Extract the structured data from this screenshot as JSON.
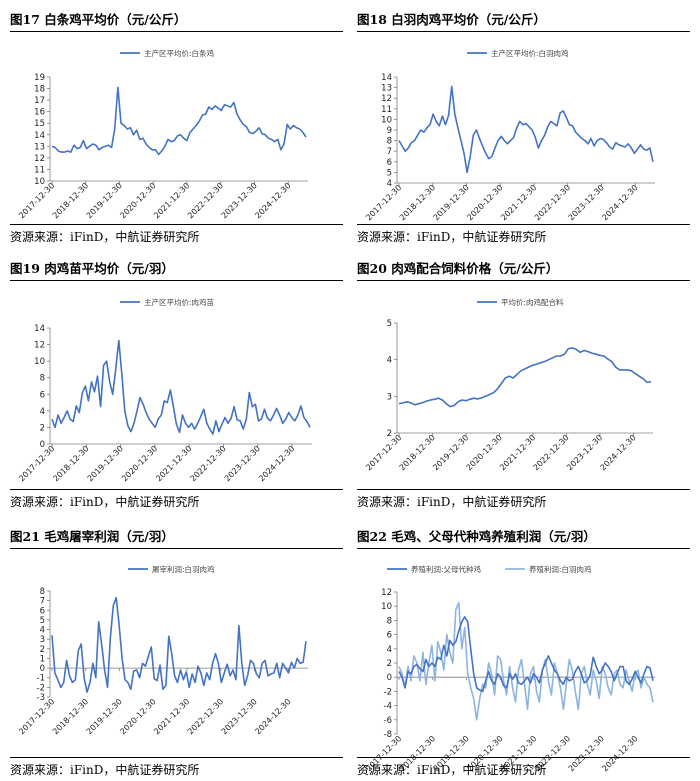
{
  "colors": {
    "line": "#4472C4",
    "line_light": "#8DB4E2",
    "axis": "#7F7F7F"
  },
  "charts": [
    {
      "chart_data": {
        "type": "line",
        "title": "图17  白条鸡平均价（元/公斤）",
        "series": [
          {
            "name": "主产区平均价:白条鸡",
            "values": [
              13,
              12.9,
              12.6,
              12.5,
              12.5,
              12.6,
              12.5,
              13.1,
              12.8,
              12.9,
              13.5,
              12.8,
              13,
              13.2,
              13.1,
              12.7,
              12.9,
              13,
              13.1,
              12.9,
              14.5,
              18.1,
              15,
              14.8,
              14.5,
              14.6,
              14,
              14.4,
              13.6,
              13.7,
              13.2,
              12.9,
              12.7,
              12.7,
              12.3,
              12.6,
              13,
              13.6,
              13.4,
              13.5,
              13.9,
              14,
              13.7,
              13.5,
              14.2,
              14.5,
              14.8,
              15.2,
              15.7,
              15.8,
              16.4,
              16.2,
              16.5,
              16.3,
              16.1,
              16.6,
              16.5,
              16.4,
              16.8,
              15.8,
              15.3,
              14.9,
              14.7,
              14.2,
              14.1,
              14.3,
              14.6,
              14.1,
              14,
              13.7,
              13.6,
              13.4,
              13.6,
              12.7,
              13.2,
              14.9,
              14.5,
              14.8,
              14.6,
              14.5,
              14.2,
              13.8
            ]
          }
        ],
        "xlabels": [
          "2017-12-30",
          "2018-12-30",
          "2019-12-30",
          "2020-12-30",
          "2021-12-30",
          "2022-12-30",
          "2023-12-30",
          "2024-12-30"
        ],
        "ylim": [
          10,
          19
        ],
        "yticks": [
          10,
          11,
          12,
          13,
          14,
          15,
          16,
          17,
          18,
          19
        ]
      },
      "source": "资源来源：iFinD，中航证券研究所"
    },
    {
      "chart_data": {
        "type": "line",
        "title": "图18  白羽肉鸡平均价（元/公斤）",
        "series": [
          {
            "name": "主产区平均价:白羽肉鸡",
            "values": [
              8,
              7.5,
              7,
              7.3,
              7.8,
              8,
              8.5,
              9,
              8.8,
              9.2,
              9.5,
              10.5,
              9.8,
              9.4,
              10.3,
              9.5,
              10.4,
              13.1,
              10.5,
              9.2,
              8,
              6.8,
              5,
              6.5,
              8.5,
              9,
              8.2,
              7.5,
              6.8,
              6.3,
              6.5,
              7.3,
              8,
              8.4,
              8,
              7.7,
              8,
              8.3,
              9.2,
              9.8,
              9.5,
              9.6,
              9.3,
              9,
              8.3,
              7.3,
              8,
              8.5,
              9.3,
              9.8,
              9.6,
              9.4,
              10.6,
              10.8,
              10.2,
              9.5,
              9.4,
              8.8,
              8.5,
              8.2,
              8,
              7.7,
              8.2,
              7.5,
              8,
              8.2,
              8.1,
              7.8,
              7.4,
              7.2,
              7.8,
              7.6,
              7.5,
              7.4,
              7.7,
              7.3,
              6.8,
              7.2,
              7.6,
              7.2,
              7.1,
              7.3,
              6
            ]
          }
        ],
        "xlabels": [
          "2017-12-30",
          "2018-12-30",
          "2019-12-30",
          "2020-12-30",
          "2021-12-30",
          "2022-12-30",
          "2023-12-30",
          "2024-12-30"
        ],
        "ylim": [
          4,
          14
        ],
        "yticks": [
          4,
          5,
          6,
          7,
          8,
          9,
          10,
          11,
          12,
          13,
          14
        ]
      },
      "source": "资源来源：iFinD，中航证券研究所"
    },
    {
      "chart_data": {
        "type": "line",
        "title": "图19  肉鸡苗平均价（元/羽）",
        "series": [
          {
            "name": "主产区平均价:肉鸡苗",
            "values": [
              3,
              2,
              3.5,
              2.5,
              3.2,
              4,
              3,
              2.7,
              4.6,
              3.8,
              6.2,
              7,
              5.2,
              7.5,
              6.3,
              8.2,
              4.5,
              9.5,
              10,
              7.5,
              6,
              9,
              12.5,
              8.5,
              4,
              2.2,
              1.5,
              2.5,
              4,
              5.6,
              4.8,
              3.8,
              3,
              2.5,
              2,
              3,
              3.5,
              5.2,
              5,
              6.5,
              4.5,
              2.4,
              1.4,
              3.5,
              2.5,
              2,
              2.5,
              1.8,
              2.5,
              3.3,
              4.2,
              2.5,
              1.8,
              1.2,
              2.8,
              1.5,
              2.4,
              3.2,
              2.5,
              3.1,
              4.5,
              2.9,
              2.8,
              1.8,
              3,
              6.2,
              4.5,
              4.8,
              2.8,
              3,
              4.2,
              3.1,
              2.8,
              3.5,
              4.3,
              3.5,
              2.5,
              3,
              3.8,
              3.2,
              2.8,
              3.5,
              4.6,
              3.2,
              2.7,
              2
            ]
          }
        ],
        "xlabels": [
          "2017-12-30",
          "2018-12-30",
          "2019-12-30",
          "2020-12-30",
          "2021-12-30",
          "2022-12-30",
          "2023-12-30",
          "2024-12-30"
        ],
        "ylim": [
          0,
          14
        ],
        "yticks": [
          0,
          2,
          4,
          6,
          8,
          10,
          12,
          14
        ]
      },
      "source": "资源来源：iFinD，中航证券研究所"
    },
    {
      "chart_data": {
        "type": "line",
        "title": "图20  肉鸡配合饲料价格（元/公斤）",
        "series": [
          {
            "name": "平均价:肉鸡配合料",
            "values": [
              2.8,
              2.82,
              2.85,
              2.82,
              2.77,
              2.8,
              2.83,
              2.87,
              2.9,
              2.92,
              2.95,
              2.9,
              2.8,
              2.72,
              2.75,
              2.85,
              2.9,
              2.88,
              2.92,
              2.95,
              2.93,
              2.96,
              3,
              3.05,
              3.1,
              3.2,
              3.35,
              3.5,
              3.55,
              3.5,
              3.6,
              3.7,
              3.75,
              3.8,
              3.85,
              3.88,
              3.92,
              3.95,
              4,
              4.05,
              4.1,
              4.1,
              4.15,
              4.3,
              4.32,
              4.28,
              4.2,
              4.25,
              4.22,
              4.18,
              4.15,
              4.12,
              4.1,
              4.02,
              3.95,
              3.8,
              3.72,
              3.72,
              3.72,
              3.7,
              3.62,
              3.55,
              3.48,
              3.38,
              3.4
            ]
          }
        ],
        "xlabels": [
          "2017-12-30",
          "2018-12-30",
          "2019-12-30",
          "2020-12-30",
          "2021-12-30",
          "2022-12-30",
          "2023-12-30",
          "2024-12-30"
        ],
        "ylim": [
          2,
          5
        ],
        "yticks": [
          2,
          3,
          4,
          5
        ]
      },
      "source": "资源来源：iFinD，中航证券研究所"
    },
    {
      "chart_data": {
        "type": "line",
        "title": "图21  毛鸡屠宰利润（元/羽）",
        "series": [
          {
            "name": "屠宰利润:白羽肉鸡",
            "values": [
              3.4,
              -0.5,
              -1.2,
              -2,
              -1.5,
              0.8,
              -0.8,
              -1.5,
              -1.2,
              1.8,
              2.5,
              -1,
              -2.5,
              -1.5,
              0.5,
              -1,
              4.8,
              2.5,
              -0.2,
              -2,
              3.2,
              6.5,
              7.3,
              4.5,
              1,
              -1.2,
              -1.5,
              -2.2,
              -0.3,
              -0.2,
              -1,
              0.5,
              0.2,
              1.2,
              2.2,
              -1.1,
              -1.3,
              0.3,
              -2.2,
              -1.8,
              3.3,
              1.5,
              -0.8,
              -1.5,
              -0.2,
              -1.2,
              -0.4,
              -2,
              -0.6,
              -1.5,
              0.2,
              -0.5,
              -1.8,
              -0.5,
              -1.2,
              0.5,
              1.5,
              0.5,
              -1.5,
              -0.5,
              0.4,
              -0.8,
              -0.2,
              -1.2,
              4.4,
              0.5,
              -1.8,
              -0.8,
              0.8,
              0.5,
              -0.6,
              -1,
              0.5,
              0.8,
              -0.8,
              -0.6,
              -0.5,
              0.5,
              -1,
              0.5,
              0,
              -0.5,
              0.6,
              0,
              1,
              0.5,
              0.6,
              2.8
            ]
          }
        ],
        "xlabels": [
          "2017-12-30",
          "2018-12-30",
          "2019-12-30",
          "2020-12-30",
          "2021-12-30",
          "2022-12-30",
          "2023-12-30",
          "2024-12-30"
        ],
        "ylim": [
          -3,
          8
        ],
        "yticks": [
          -3,
          -2,
          -1,
          0,
          1,
          2,
          3,
          4,
          5,
          6,
          7,
          8
        ]
      },
      "source": "资源来源：iFinD，中航证券研究所"
    },
    {
      "chart_data": {
        "type": "line",
        "title": "图22  毛鸡、父母代种鸡养殖利润（元/羽）",
        "series": [
          {
            "name": "养殖利润:父母代种鸡",
            "values": [
              0.8,
              0,
              -1.5,
              0.8,
              0.5,
              1.5,
              1.8,
              1.2,
              0.8,
              2.5,
              1.5,
              2,
              1.5,
              2.8,
              2.5,
              4.5,
              3,
              5.2,
              4.5,
              5,
              6.5,
              7.8,
              8.5,
              7.8,
              4,
              0.5,
              -1.5,
              -1.8,
              -2,
              -0.5,
              0.8,
              -0.5,
              -1,
              0.5,
              0,
              -1.2,
              -1.5,
              0.5,
              -0.3,
              0.5,
              -0.8,
              -1,
              -0.5,
              0,
              -0.8,
              0.5,
              0,
              -0.8,
              1,
              2,
              3,
              2,
              1,
              0.5,
              -0.5,
              -1,
              0,
              -0.5,
              -0.3,
              0.8,
              1.5,
              0.5,
              -0.8,
              -0.5,
              0.3,
              2.8,
              1.5,
              0.5,
              1,
              2,
              1.5,
              0.8,
              -0.5,
              0.5,
              1.5,
              1.5,
              -0.5,
              -1,
              -0.3,
              0.8,
              0,
              -0.8,
              0.5,
              1.5,
              1.3,
              -0.5
            ]
          },
          {
            "name": "养殖利润:白羽肉鸡",
            "values": [
              1.5,
              0.5,
              -1.5,
              1.5,
              -0.5,
              3,
              2,
              -0.5,
              3.5,
              -1,
              2,
              4.5,
              -0.5,
              5,
              3.5,
              1,
              6,
              3.5,
              2,
              9.5,
              10.5,
              4,
              7,
              0.5,
              -1.5,
              -3,
              -6,
              -3,
              -1,
              -1.5,
              2,
              0.5,
              -2.5,
              3,
              2.5,
              -0.5,
              -2.5,
              1.5,
              -1.5,
              -3.5,
              1,
              2.5,
              -1,
              -4.5,
              0.5,
              1.5,
              -2,
              -3.5,
              1,
              2.5,
              -0.5,
              -2.5,
              2,
              0.5,
              -1.5,
              -4.5,
              -1,
              2.5,
              1,
              -2,
              -4.5,
              0.5,
              1.5,
              -1,
              -2.5,
              1,
              -0.5,
              -3,
              1.5,
              0.5,
              -1.5,
              -2.5,
              0.5,
              1,
              -1,
              -1.5,
              1,
              -0.5,
              -2,
              0.5,
              1,
              -1.5,
              0,
              -1,
              -1.5,
              -3.5
            ]
          }
        ],
        "xlabels": [
          "2017-12-30",
          "2018-12-30",
          "2019-12-30",
          "2020-12-30",
          "2021-12-30",
          "2022-12-30",
          "2023-12-30",
          "2024-12-30"
        ],
        "ylim": [
          -8,
          12
        ],
        "yticks": [
          -8,
          -6,
          -4,
          -2,
          0,
          2,
          4,
          6,
          8,
          10,
          12
        ]
      },
      "source": "资源来源：iFinD，中航证券研究所"
    }
  ]
}
